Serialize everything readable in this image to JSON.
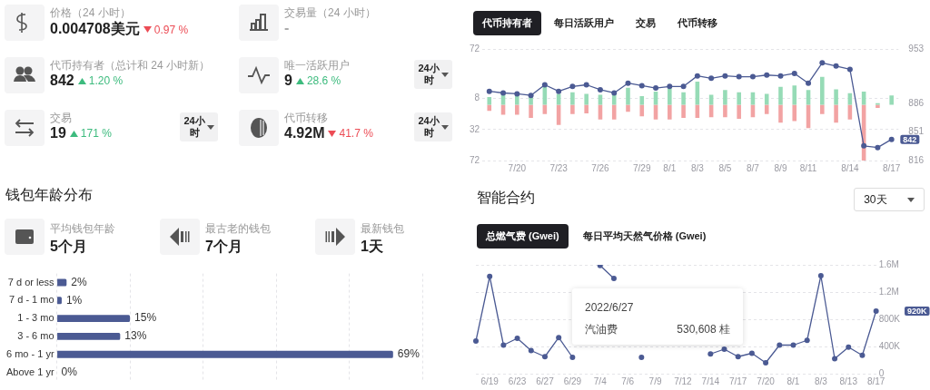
{
  "chart_data": [
    {
      "type": "other",
      "annotations": [
        "价格（24 小时）",
        "0.004708美元",
        "0.97 %",
        "交易量（24 小时）",
        "-",
        "代币持有者（总计和 24 小时新）",
        "842",
        "1.20 %",
        "唯一活跃用户",
        "9",
        "28.6 %",
        "24小时",
        "交易",
        "19",
        "171 %",
        "24小时",
        "代币转移",
        "4.92M",
        "41.7 %",
        "24小时"
      ]
    },
    {
      "type": "bar",
      "stacked": true,
      "marker": "circle",
      "grid": "y",
      "legend": false,
      "categories": [
        null,
        null,
        "7/20",
        null,
        null,
        "7/23",
        null,
        null,
        "7/26",
        null,
        null,
        "7/29",
        null,
        "8/1",
        null,
        "8/3",
        null,
        "8/5",
        null,
        "8/7",
        null,
        "8/9",
        null,
        "8/11",
        null,
        null,
        "8/14",
        null,
        null,
        "8/17"
      ],
      "ylim": [
        -72,
        72
      ],
      "yticks": [
        72,
        8,
        {
          "value": -32,
          "label": "32"
        },
        {
          "value": -72,
          "label": "72"
        }
      ],
      "y2lim": [
        816,
        953
      ],
      "y2ticks": [
        816,
        851,
        886,
        953
      ],
      "annotations": [
        "代币持有者",
        "每日活跃用户",
        "交易",
        "代币转移",
        "842"
      ],
      "series": [
        {
          "type": "bar",
          "color": "#96dbb6",
          "values": [
            10,
            14,
            14,
            11,
            26,
            14,
            16,
            14,
            13,
            14,
            22,
            11,
            17,
            21,
            16,
            30,
            13,
            19,
            16,
            16,
            14,
            23,
            25,
            19,
            36,
            20,
            15,
            17,
            2,
            12
          ]
        },
        {
          "type": "bar",
          "color": "#f2a3a3",
          "values": [
            -8,
            -13,
            -13,
            -17,
            -12,
            -26,
            -12,
            -11,
            -19,
            -19,
            -9,
            -15,
            -19,
            -19,
            -17,
            -17,
            -16,
            -16,
            -18,
            -16,
            -12,
            -23,
            -21,
            -30,
            -12,
            -23,
            -19,
            -72,
            -4,
            null
          ]
        },
        {
          "type": "line",
          "axis": "y2",
          "color": "#4b5a93",
          "values": [
            901,
            899,
            898,
            896,
            909,
            901,
            907,
            909,
            903,
            899,
            911,
            908,
            905,
            907,
            907,
            920,
            917,
            920,
            919,
            919,
            921,
            920,
            923,
            911,
            936,
            932,
            928,
            834,
            832,
            842
          ]
        }
      ]
    },
    {
      "type": "other",
      "title": "钱包年龄分布",
      "annotations": [
        "平均钱包年龄",
        "5个月",
        "最古老的钱包",
        "7个月",
        "最新钱包",
        "1天"
      ]
    },
    {
      "type": "bar",
      "orientation": "horizontal",
      "grid": "x",
      "tick_labels": "y",
      "legend": false,
      "categories": [
        "7 d or less",
        "7 d - 1 mo",
        "1 - 3 mo",
        "3 - 6 mo",
        "6 mo - 1 yr",
        "Above 1 yr"
      ],
      "values": [
        2,
        1,
        15,
        13,
        69,
        0
      ],
      "color": "#4b5a93",
      "value_labels": [
        "2%",
        "1%",
        "15%",
        "13%",
        "69%",
        "0%"
      ],
      "xlim": [
        0,
        75
      ],
      "xticks": [
        {
          "value": 0,
          "label": null
        },
        {
          "value": 15,
          "label": null
        },
        {
          "value": 30,
          "label": null
        },
        {
          "value": 45,
          "label": null
        },
        {
          "value": 60,
          "label": null
        },
        {
          "value": 75,
          "label": null
        }
      ]
    },
    {
      "type": "line",
      "title": "智能合约",
      "marker": "circle",
      "grid": "y",
      "legend": false,
      "color": "#4b5a93",
      "categories": [
        null,
        "6/19",
        null,
        "6/23",
        null,
        "6/27",
        null,
        "6/29",
        null,
        "7/4",
        null,
        "7/6",
        null,
        "7/9",
        null,
        "7/12",
        null,
        "7/14",
        null,
        "7/17",
        null,
        "7/20",
        null,
        "8/1",
        null,
        "8/3",
        null,
        "8/13",
        null,
        "8/17"
      ],
      "values": [
        480000,
        1430000,
        420000,
        520000,
        340000,
        250000,
        530608,
        240000,
        null,
        1590000,
        1400000,
        null,
        240000,
        null,
        null,
        null,
        null,
        290000,
        360000,
        250000,
        300000,
        160000,
        420000,
        420000,
        490000,
        1440000,
        220000,
        390000,
        270000,
        920000
      ],
      "ylim": [
        0,
        1600000
      ],
      "yticks": [
        0,
        {
          "value": 400000,
          "label": "400K"
        },
        {
          "value": 800000,
          "label": "800K"
        },
        {
          "value": 1200000,
          "label": "1.2M"
        },
        {
          "value": 1600000,
          "label": "1.6M"
        }
      ],
      "annotations": [
        "30天",
        "总燃气费 (Gwei)",
        "每日平均天然气价格 (Gwei)",
        "2022/6/27",
        "汽油费",
        "530,608 桂",
        "920K"
      ]
    }
  ]
}
